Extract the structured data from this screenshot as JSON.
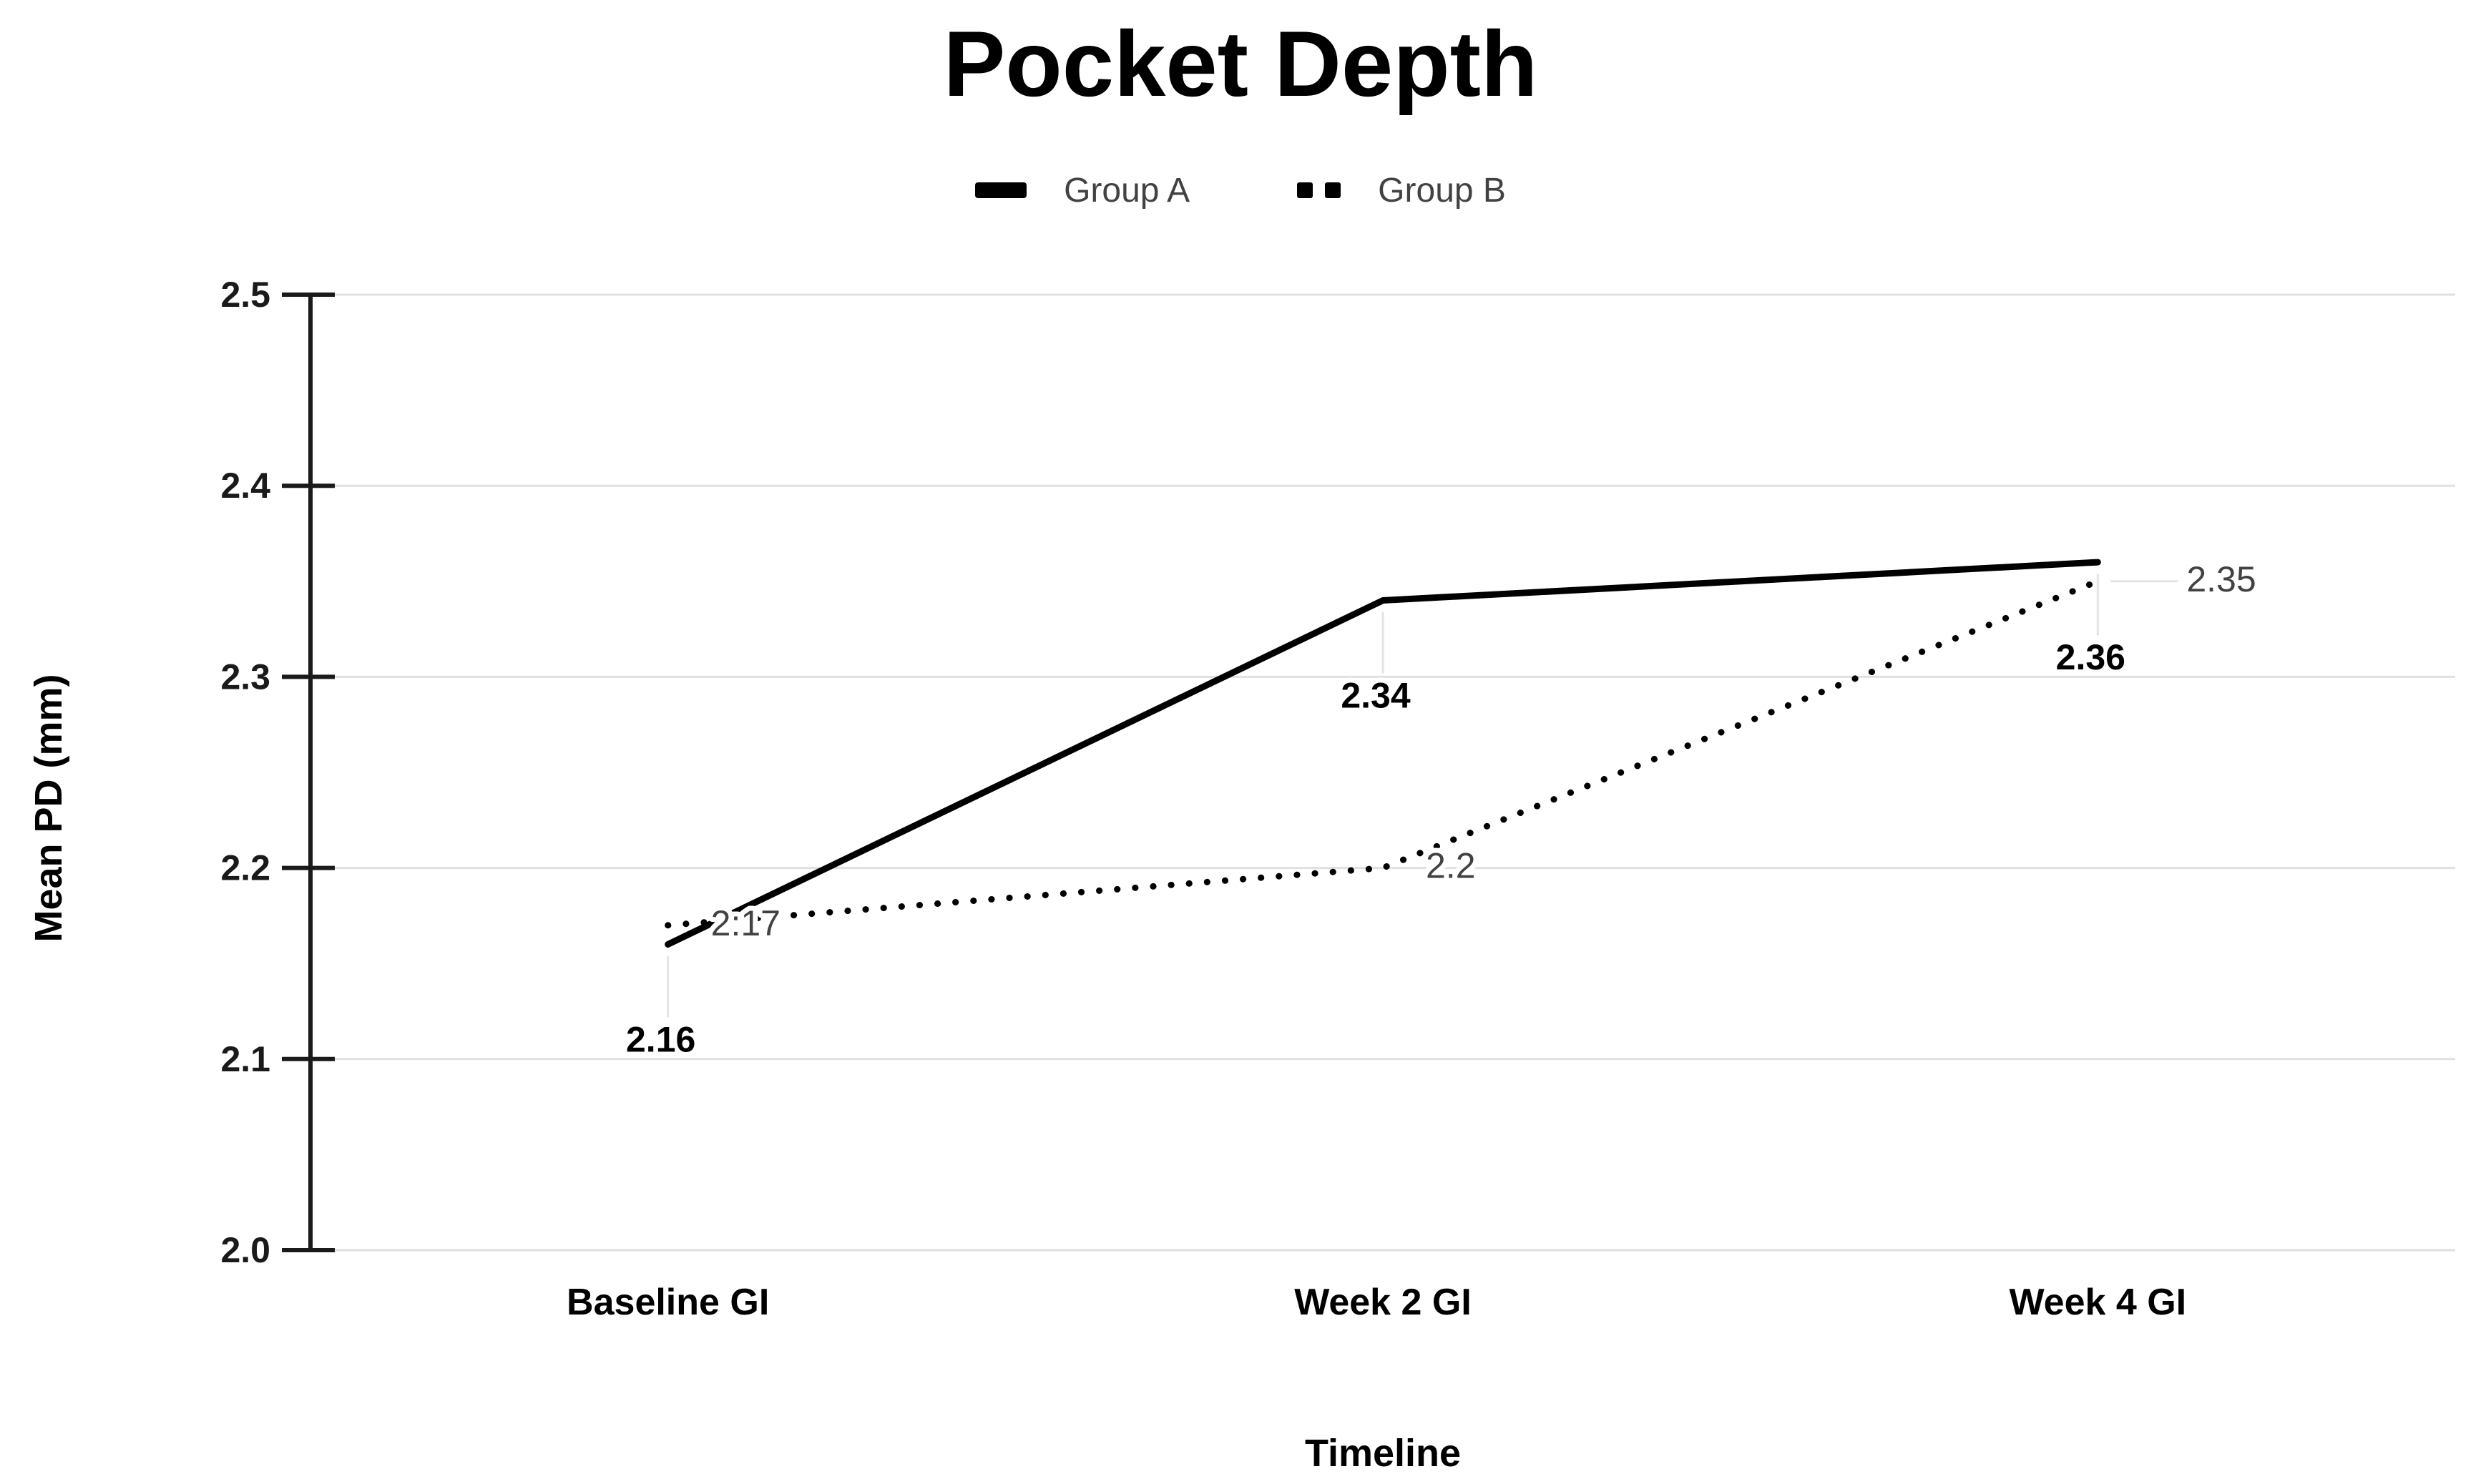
{
  "title": "Pocket Depth",
  "legend": {
    "items": [
      {
        "label": "Group A",
        "style": "solid"
      },
      {
        "label": "Group B",
        "style": "dotted"
      }
    ]
  },
  "axes": {
    "y": {
      "title": "Mean PD (mm)"
    },
    "x": {
      "title": "Timeline"
    }
  },
  "chart_data": {
    "type": "line",
    "title": "Pocket Depth",
    "xlabel": "Timeline",
    "ylabel": "Mean PD (mm)",
    "categories": [
      "Baseline GI",
      "Week 2 GI",
      "Week 4 GI"
    ],
    "series": [
      {
        "name": "Group A",
        "values": [
          2.16,
          2.34,
          2.36
        ],
        "point_labels": [
          "2.16",
          "2.34",
          "2.36"
        ],
        "line_style": "solid",
        "color": "#000000",
        "label_placement": "below"
      },
      {
        "name": "Group B",
        "values": [
          2.17,
          2.2,
          2.35
        ],
        "point_labels": [
          "2:17",
          "2.2",
          "2.35"
        ],
        "line_style": "dotted",
        "color": "#000000",
        "label_placement": "right"
      }
    ],
    "ylim": [
      2.0,
      2.5
    ],
    "yticks": [
      2.0,
      2.1,
      2.2,
      2.3,
      2.4,
      2.5
    ],
    "grid": true,
    "legend_position": "top"
  },
  "colors": {
    "background": "#ffffff",
    "grid": "#e0e0e0",
    "axis": "#1a1a1a",
    "leader": "#e4e4e4",
    "label_bold": "#000000",
    "label_gray": "#424242"
  }
}
